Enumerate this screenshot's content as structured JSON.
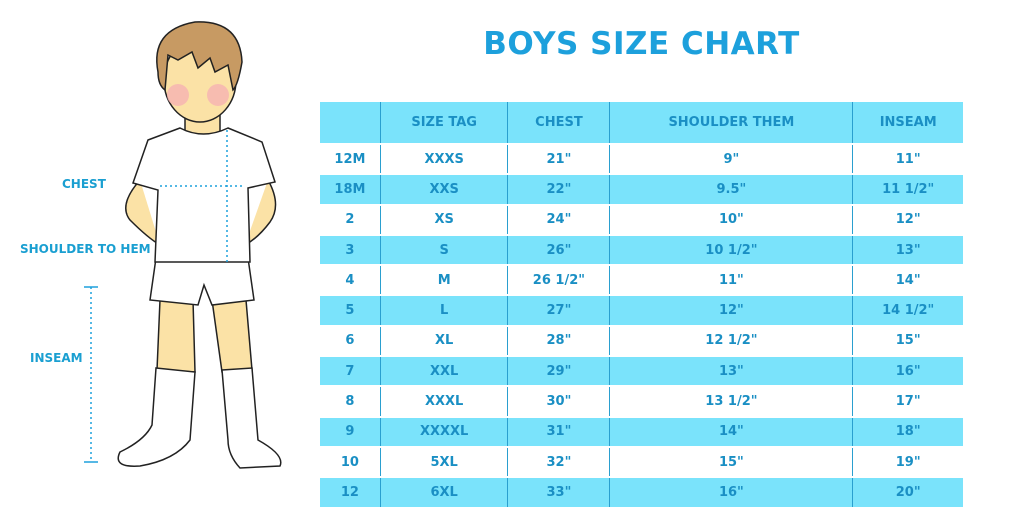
{
  "title": "BOYS SIZE CHART",
  "figure_labels": {
    "chest": "CHEST",
    "shoulder_to_hem": "SHOULDER TO HEM",
    "inseam": "INSEAM"
  },
  "colors": {
    "accent": "#1da0dc",
    "row_fill": "#7ae3fb"
  },
  "chart_data": {
    "type": "table",
    "title": "BOYS SIZE CHART",
    "columns": [
      "",
      "SIZE TAG",
      "CHEST",
      "SHOULDER THEM",
      "INSEAM"
    ],
    "rows": [
      [
        "12M",
        "XXXS",
        "21\"",
        "9\"",
        "11\""
      ],
      [
        "18M",
        "XXS",
        "22\"",
        "9.5\"",
        "11 1/2\""
      ],
      [
        "2",
        "XS",
        "24\"",
        "10\"",
        "12\""
      ],
      [
        "3",
        "S",
        "26\"",
        "10 1/2\"",
        "13\""
      ],
      [
        "4",
        "M",
        "26 1/2\"",
        "11\"",
        "14\""
      ],
      [
        "5",
        "L",
        "27\"",
        "12\"",
        "14 1/2\""
      ],
      [
        "6",
        "XL",
        "28\"",
        "12 1/2\"",
        "15\""
      ],
      [
        "7",
        "XXL",
        "29\"",
        "13\"",
        "16\""
      ],
      [
        "8",
        "XXXL",
        "30\"",
        "13 1/2\"",
        "17\""
      ],
      [
        "9",
        "XXXXL",
        "31\"",
        "14\"",
        "18\""
      ],
      [
        "10",
        "5XL",
        "32\"",
        "15\"",
        "19\""
      ],
      [
        "12",
        "6XL",
        "33\"",
        "16\"",
        "20\""
      ]
    ]
  }
}
